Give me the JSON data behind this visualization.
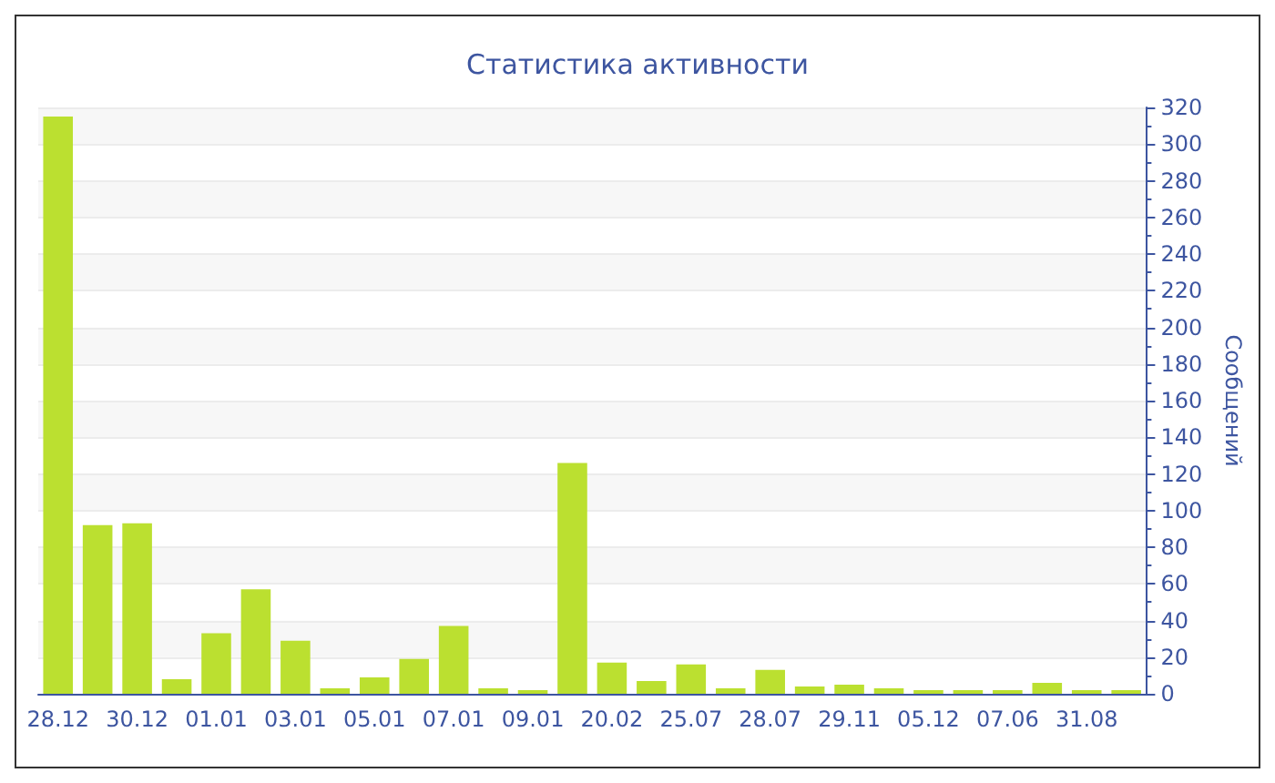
{
  "chart_data": {
    "type": "bar",
    "title": "Статистика активности",
    "ylabel": "Сообщений",
    "categories": [
      "28.12",
      null,
      "30.12",
      null,
      "01.01",
      null,
      "03.01",
      null,
      "05.01",
      null,
      "07.01",
      null,
      "09.01",
      null,
      "20.02",
      null,
      "25.07",
      null,
      "28.07",
      null,
      "29.11",
      null,
      "05.12",
      null,
      "07.06",
      null,
      "31.08",
      null
    ],
    "values": [
      315,
      92,
      93,
      8,
      33,
      57,
      29,
      3,
      9,
      19,
      37,
      3,
      2,
      126,
      17,
      7,
      16,
      3,
      13,
      4,
      5,
      3,
      2,
      2,
      2,
      6,
      2,
      2
    ],
    "color": "#bbe030",
    "ylim": [
      0,
      320
    ],
    "yticks": [
      0,
      20,
      40,
      60,
      80,
      100,
      120,
      140,
      160,
      180,
      200,
      220,
      240,
      260,
      280,
      300,
      320
    ],
    "grid": "y"
  }
}
